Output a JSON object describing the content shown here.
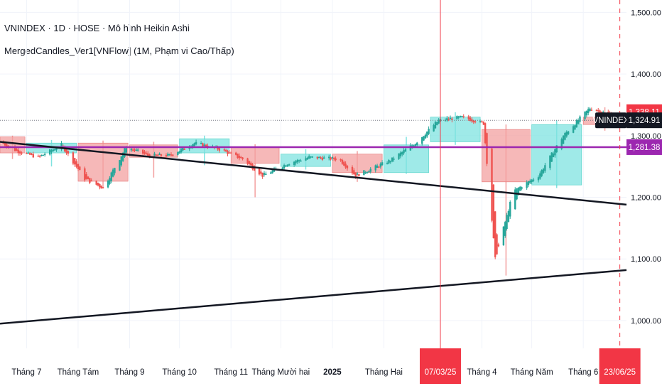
{
  "legend": {
    "line1": "VNINDEX · 1D · HOSE · Mô hình Heikin Ashi",
    "line2": "MergedCandles_Ver1[VNFlow] (1M, Phạm vi Cao/Thấp)"
  },
  "colors": {
    "up": "#26a69a",
    "down": "#ef5350",
    "up_box": "#7fe3e0",
    "down_box": "#f3a0a0",
    "purple": "#9c27b0",
    "red_line": "#f23645",
    "trend": "#131722"
  },
  "chart_data": {
    "type": "candlestick",
    "ylim": [
      955,
      1520
    ],
    "y_ticks": [
      "1,500.00",
      "1,400.00",
      "1,300.00",
      "1,200.00",
      "1,100.00",
      "1,000.00"
    ],
    "y_tick_values": [
      1500,
      1400,
      1300,
      1200,
      1100,
      1000
    ],
    "x_start": "2024-06-15",
    "x_end": "2025-06-27",
    "x_ticks": [
      {
        "label": "Tháng 7",
        "date": "2024-07-01"
      },
      {
        "label": "Tháng Tám",
        "date": "2024-08-01"
      },
      {
        "label": "Tháng 9",
        "date": "2024-09-01"
      },
      {
        "label": "Tháng 10",
        "date": "2024-10-01"
      },
      {
        "label": "Tháng 11",
        "date": "2024-11-01"
      },
      {
        "label": "Tháng Mười hai",
        "date": "2024-12-01"
      },
      {
        "label": "2025",
        "date": "2025-01-01",
        "bold": true
      },
      {
        "label": "Tháng Hai",
        "date": "2025-02-01"
      },
      {
        "label": "Tháng 4",
        "date": "2025-04-01"
      },
      {
        "label": "Tháng Năm",
        "date": "2025-05-01"
      },
      {
        "label": "Tháng 6",
        "date": "2025-06-01"
      }
    ],
    "price_tags": [
      {
        "label": "1,338.11",
        "value": 1338.11,
        "color": "#f23645"
      },
      {
        "label": "1,324.91",
        "value": 1324.91,
        "color": "#131722",
        "name": "VNINDEX"
      },
      {
        "label": "1,281.38",
        "value": 1281.38,
        "color": "#9c27b0"
      }
    ],
    "date_tags": [
      {
        "label": "07/03/25",
        "date": "2025-03-07"
      },
      {
        "label": "23/06/25",
        "date": "2025-06-23"
      }
    ],
    "horizontal_lines": [
      {
        "value": 1281.38,
        "color": "#9c27b0"
      },
      {
        "value": 1324.91,
        "color": "#787b86",
        "style": "dotted"
      }
    ],
    "trend_lines": [
      {
        "from": [
          "2024-06-15",
          1290
        ],
        "to": [
          "2025-06-27",
          1188
        ]
      },
      {
        "from": [
          "2024-06-15",
          995
        ],
        "to": [
          "2025-06-27",
          1082
        ]
      }
    ],
    "vertical_lines": [
      {
        "date": "2025-03-07",
        "style": "solid"
      },
      {
        "date": "2025-06-23",
        "style": "dashed"
      }
    ],
    "monthly_boxes": [
      {
        "start": "2024-06-15",
        "end": "2024-06-30",
        "open": 1298,
        "close": 1272,
        "high": 1300,
        "low": 1262
      },
      {
        "start": "2024-07-01",
        "end": "2024-07-31",
        "open": 1272,
        "close": 1288,
        "high": 1293,
        "low": 1250
      },
      {
        "start": "2024-08-01",
        "end": "2024-08-31",
        "open": 1288,
        "close": 1226,
        "high": 1292,
        "low": 1215
      },
      {
        "start": "2024-09-01",
        "end": "2024-09-30",
        "open": 1285,
        "close": 1265,
        "high": 1290,
        "low": 1232
      },
      {
        "start": "2024-10-01",
        "end": "2024-10-31",
        "open": 1272,
        "close": 1295,
        "high": 1300,
        "low": 1252
      },
      {
        "start": "2024-11-01",
        "end": "2024-11-30",
        "open": 1282,
        "close": 1255,
        "high": 1286,
        "low": 1200
      },
      {
        "start": "2024-12-01",
        "end": "2024-12-31",
        "open": 1250,
        "close": 1270,
        "high": 1278,
        "low": 1245
      },
      {
        "start": "2025-01-01",
        "end": "2025-01-31",
        "open": 1270,
        "close": 1240,
        "high": 1275,
        "low": 1225
      },
      {
        "start": "2025-02-01",
        "end": "2025-02-28",
        "open": 1240,
        "close": 1285,
        "high": 1298,
        "low": 1238
      },
      {
        "start": "2025-03-01",
        "end": "2025-03-31",
        "open": 1290,
        "close": 1330,
        "high": 1338,
        "low": 1285
      },
      {
        "start": "2025-04-01",
        "end": "2025-04-30",
        "open": 1310,
        "close": 1225,
        "high": 1318,
        "low": 1073
      },
      {
        "start": "2025-05-01",
        "end": "2025-05-31",
        "open": 1220,
        "close": 1318,
        "high": 1325,
        "low": 1215
      },
      {
        "start": "2025-06-01",
        "end": "2025-06-27",
        "open": 1330,
        "close": 1318,
        "high": 1346,
        "low": 1308
      }
    ],
    "daily_ha": {
      "keyframes": [
        [
          "2024-06-15",
          1290
        ],
        [
          "2024-06-25",
          1275
        ],
        [
          "2024-07-08",
          1265
        ],
        [
          "2024-07-22",
          1285
        ],
        [
          "2024-08-05",
          1230
        ],
        [
          "2024-08-16",
          1215
        ],
        [
          "2024-08-30",
          1282
        ],
        [
          "2024-09-12",
          1268
        ],
        [
          "2024-09-25",
          1268
        ],
        [
          "2024-10-10",
          1288
        ],
        [
          "2024-10-25",
          1278
        ],
        [
          "2024-11-08",
          1262
        ],
        [
          "2024-11-20",
          1235
        ],
        [
          "2024-12-05",
          1255
        ],
        [
          "2024-12-18",
          1265
        ],
        [
          "2025-01-05",
          1262
        ],
        [
          "2025-01-15",
          1235
        ],
        [
          "2025-02-05",
          1260
        ],
        [
          "2025-02-20",
          1288
        ],
        [
          "2025-03-06",
          1325
        ],
        [
          "2025-03-20",
          1330
        ],
        [
          "2025-04-02",
          1320
        ],
        [
          "2025-04-09",
          1100
        ],
        [
          "2025-04-20",
          1210
        ],
        [
          "2025-05-05",
          1235
        ],
        [
          "2025-05-20",
          1300
        ],
        [
          "2025-06-05",
          1345
        ],
        [
          "2025-06-27",
          1325
        ]
      ]
    }
  }
}
